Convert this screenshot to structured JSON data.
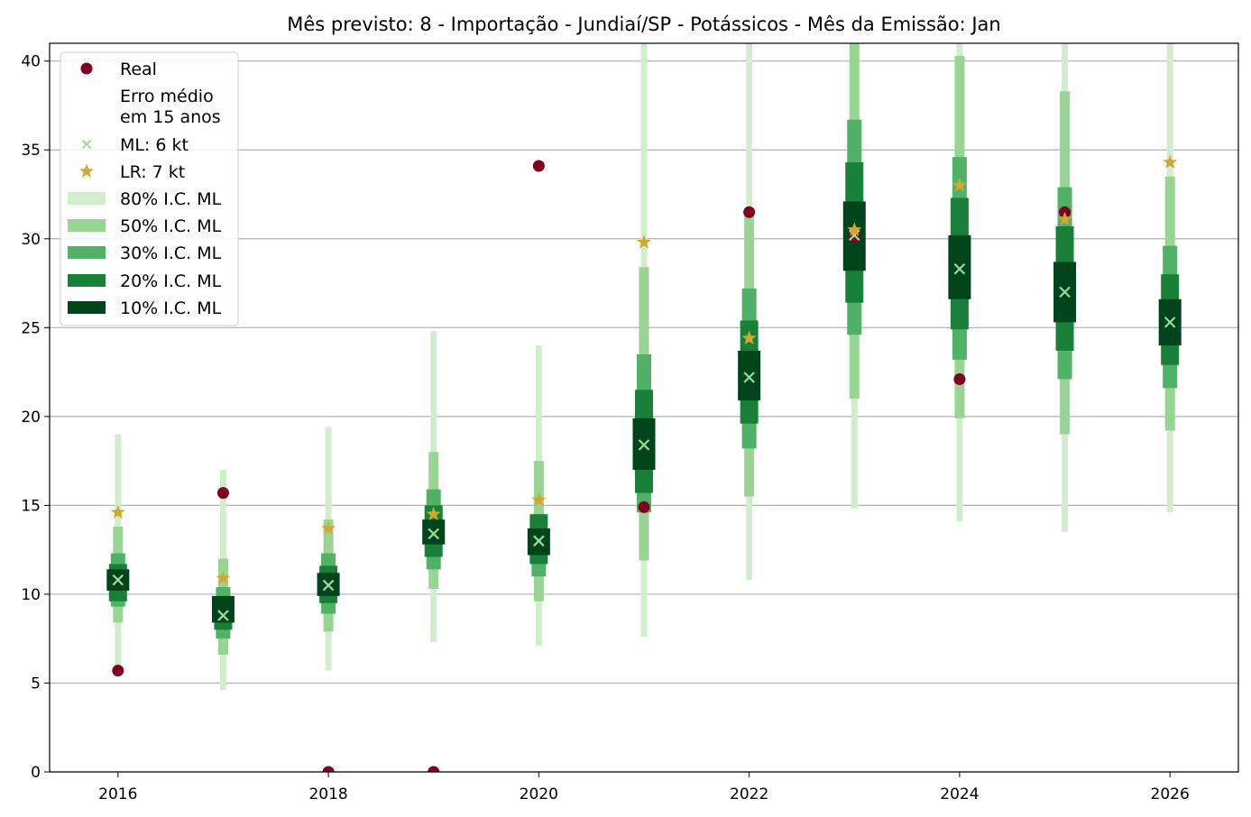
{
  "chart_data": {
    "type": "interval-forecast",
    "title": "Mês previsto: 8 - Importação - Jundiaí/SP - Potássicos - Mês da Emissão: Jan",
    "xlabel": "",
    "ylabel": "",
    "xlim": [
      2015.35,
      2026.65
    ],
    "ylim": [
      0,
      41
    ],
    "x_ticks": [
      "2016",
      "2018",
      "2020",
      "2022",
      "2024",
      "2026"
    ],
    "y_ticks": [
      "0",
      "5",
      "10",
      "15",
      "20",
      "25",
      "30",
      "35",
      "40"
    ],
    "grid": "horizontal",
    "legend_position": "top-left",
    "legend": {
      "real": "Real",
      "note": [
        "Erro médio",
        "em 15 anos"
      ],
      "ml": "ML: 6 kt",
      "lr": "LR: 7 kt",
      "ci80": "80% I.C. ML",
      "ci50": "50% I.C. ML",
      "ci30": "30% I.C. ML",
      "ci20": "20% I.C. ML",
      "ci10": "10% I.C. ML"
    },
    "colors": {
      "real": "#7f0020",
      "ml_marker": "#a1d99b",
      "lr_marker": "#d4a830",
      "ci80": "#d2edcc",
      "ci50": "#98d493",
      "ci30": "#4fb267",
      "ci20": "#188038",
      "ci10": "#00441b",
      "grid": "#b0b0b0"
    },
    "years": [
      2016,
      2017,
      2018,
      2019,
      2020,
      2021,
      2022,
      2023,
      2024,
      2025,
      2026
    ],
    "real": [
      5.7,
      15.7,
      0.0,
      0.0,
      34.1,
      14.9,
      31.5,
      30.1,
      22.1,
      31.5,
      null
    ],
    "ml": [
      10.8,
      8.8,
      10.5,
      13.4,
      13.0,
      18.4,
      22.2,
      30.2,
      28.3,
      27.0,
      25.3
    ],
    "lr": [
      14.6,
      10.9,
      13.7,
      14.5,
      15.3,
      29.8,
      24.4,
      30.5,
      33.0,
      31.1,
      34.3
    ],
    "ci80": [
      [
        5.9,
        19.0
      ],
      [
        4.6,
        17.0
      ],
      [
        5.7,
        19.4
      ],
      [
        7.3,
        24.8
      ],
      [
        7.1,
        24.0
      ],
      [
        7.6,
        41.0
      ],
      [
        10.8,
        41.0
      ],
      [
        14.8,
        41.0
      ],
      [
        14.1,
        41.0
      ],
      [
        13.5,
        41.0
      ],
      [
        14.6,
        41.0
      ]
    ],
    "ci50": [
      [
        8.4,
        13.8
      ],
      [
        6.6,
        12.0
      ],
      [
        7.9,
        14.2
      ],
      [
        10.3,
        18.0
      ],
      [
        9.6,
        17.5
      ],
      [
        11.9,
        28.4
      ],
      [
        15.5,
        31.6
      ],
      [
        21.0,
        41.0
      ],
      [
        19.9,
        40.3
      ],
      [
        19.0,
        38.3
      ],
      [
        19.2,
        33.5
      ]
    ],
    "ci30": [
      [
        9.3,
        12.3
      ],
      [
        7.5,
        10.4
      ],
      [
        8.9,
        12.3
      ],
      [
        11.4,
        15.9
      ],
      [
        11.0,
        14.5
      ],
      [
        14.6,
        23.5
      ],
      [
        18.2,
        27.2
      ],
      [
        24.6,
        36.7
      ],
      [
        23.2,
        34.6
      ],
      [
        22.1,
        32.9
      ],
      [
        21.6,
        29.6
      ]
    ],
    "ci20": [
      [
        9.6,
        11.7
      ],
      [
        8.0,
        9.8
      ],
      [
        9.5,
        11.6
      ],
      [
        12.1,
        15.0
      ],
      [
        11.7,
        14.5
      ],
      [
        15.7,
        21.5
      ],
      [
        19.6,
        25.4
      ],
      [
        26.4,
        34.3
      ],
      [
        24.9,
        32.3
      ],
      [
        23.7,
        30.7
      ],
      [
        22.9,
        28.0
      ]
    ],
    "ci10": [
      [
        10.2,
        11.4
      ],
      [
        8.4,
        9.9
      ],
      [
        9.9,
        11.2
      ],
      [
        12.8,
        14.2
      ],
      [
        12.2,
        13.7
      ],
      [
        17.0,
        19.9
      ],
      [
        20.9,
        23.7
      ],
      [
        28.2,
        32.1
      ],
      [
        26.6,
        30.2
      ],
      [
        25.3,
        28.7
      ],
      [
        24.0,
        26.6
      ]
    ]
  }
}
